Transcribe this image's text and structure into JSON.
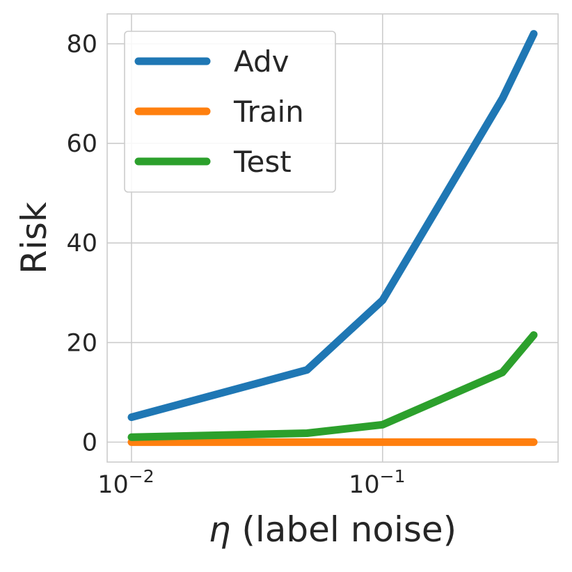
{
  "chart_data": {
    "type": "line",
    "xscale": "log",
    "xlim": [
      0.008,
      0.5
    ],
    "ylim": [
      -4,
      86
    ],
    "xticks": [
      {
        "value": 0.01,
        "base": "10",
        "exp": "−2"
      },
      {
        "value": 0.1,
        "base": "10",
        "exp": "−1"
      }
    ],
    "yticks": [
      {
        "value": 0,
        "label": "0"
      },
      {
        "value": 20,
        "label": "20"
      },
      {
        "value": 40,
        "label": "40"
      },
      {
        "value": 60,
        "label": "60"
      },
      {
        "value": 80,
        "label": "80"
      }
    ],
    "xlabel": {
      "symbol": "η",
      "text": " (label noise)"
    },
    "ylabel": "Risk",
    "grid": true,
    "legend_position": "top-left",
    "x": [
      0.01,
      0.05,
      0.1,
      0.3,
      0.4
    ],
    "series": [
      {
        "name": "Adv",
        "color": "#1f77b4",
        "values": [
          5.0,
          14.5,
          28.5,
          69.0,
          82.0
        ]
      },
      {
        "name": "Train",
        "color": "#ff7f0e",
        "values": [
          0.0,
          0.0,
          0.0,
          0.0,
          0.0
        ]
      },
      {
        "name": "Test",
        "color": "#2ca02c",
        "values": [
          1.0,
          1.8,
          3.5,
          14.0,
          21.5
        ]
      }
    ]
  }
}
